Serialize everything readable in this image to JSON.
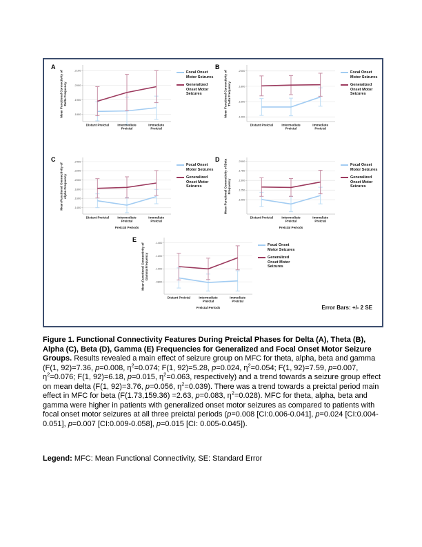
{
  "figure": {
    "note": "Error Bars: +/- 2 SE",
    "border_color": "#3d4e6e"
  },
  "chart_data": [
    {
      "panel": "A",
      "type": "line",
      "ylabel": "Mean Functional Connectivity of Delta Frequency",
      "ylabel_lines": [
        "Mean Functional Connectivity of",
        "Delta Frequency"
      ],
      "x_categories": [
        [
          "Distant Preictal"
        ],
        [
          "Intermediate",
          "Preictal"
        ],
        [
          "Immediate",
          "Preictal"
        ]
      ],
      "x_title": null,
      "y_ticks": [
        {
          "label": ".2100",
          "value": 0.21
        },
        {
          "label": ".2000",
          "value": 0.2
        },
        {
          "label": ".1900",
          "value": 0.19
        },
        {
          "label": ".1800",
          "value": 0.18
        }
      ],
      "y_range": [
        0.175,
        0.213
      ],
      "grid": true,
      "legend_position": "right",
      "series": [
        {
          "name": "Focal Onset Motor Seizures",
          "color": "#a2ccf2",
          "error_color": "#bcdcf5",
          "values": [
            0.182,
            0.1823,
            0.1845
          ],
          "errors": [
            0.0065,
            0.0095,
            0.008
          ]
        },
        {
          "name": "Generalized Onset Motor Seizures",
          "color": "#9c3a5e",
          "error_color": "#c78fa5",
          "values": [
            0.189,
            0.195,
            0.199
          ],
          "errors": [
            0.01,
            0.0125,
            0.011
          ]
        }
      ]
    },
    {
      "panel": "B",
      "type": "line",
      "ylabel": "Mean Functional Connectivity of Theta Frequency",
      "ylabel_lines": [
        "Mean Functional Connectivity of",
        "Theta Frequency"
      ],
      "x_categories": [
        [
          "Distant Preictal"
        ],
        [
          "Intermediate",
          "Preictal"
        ],
        [
          "Immediate",
          "Preictal"
        ]
      ],
      "x_title": null,
      "y_ticks": [
        {
          "label": ".2000",
          "value": 0.2
        },
        {
          "label": ".1800",
          "value": 0.18
        },
        {
          "label": ".1600",
          "value": 0.16
        },
        {
          "label": ".1400",
          "value": 0.14
        }
      ],
      "y_range": [
        0.134,
        0.206
      ],
      "grid": true,
      "legend_position": "right",
      "series": [
        {
          "name": "Focal Onset Motor Seizures",
          "color": "#a2ccf2",
          "error_color": "#bcdcf5",
          "values": [
            0.153,
            0.153,
            0.166
          ],
          "errors": [
            0.011,
            0.0115,
            0.012
          ]
        },
        {
          "name": "Generalized Onset Motor Seizures",
          "color": "#9c3a5e",
          "error_color": "#c78fa5",
          "values": [
            0.1805,
            0.1815,
            0.182
          ],
          "errors": [
            0.013,
            0.0125,
            0.015
          ]
        }
      ]
    },
    {
      "panel": "C",
      "type": "line",
      "ylabel": "Mean Functional Connectivity of Alpha Frequency",
      "ylabel_lines": [
        "Mean Functional Connectivity of",
        "Alpha Frequency"
      ],
      "x_categories": [
        [
          "Distant Preictal"
        ],
        [
          "Intermediate",
          "Preictal"
        ],
        [
          "Immediate",
          "Preictal"
        ]
      ],
      "x_title": "Preictal Periods",
      "y_ticks": [
        {
          "label": ".2400",
          "value": 0.24
        },
        {
          "label": ".2200",
          "value": 0.22
        },
        {
          "label": ".2000",
          "value": 0.2
        },
        {
          "label": ".1800",
          "value": 0.18
        },
        {
          "label": ".1600",
          "value": 0.16
        },
        {
          "label": ".1400",
          "value": 0.14
        }
      ],
      "y_range": [
        0.126,
        0.246
      ],
      "grid": true,
      "legend_position": "right",
      "series": [
        {
          "name": "Focal Onset Motor Seizures",
          "color": "#a2ccf2",
          "error_color": "#bcdcf5",
          "values": [
            0.155,
            0.1455,
            0.164
          ],
          "errors": [
            0.015,
            0.0165,
            0.0155
          ]
        },
        {
          "name": "Generalized Onset Motor Seizures",
          "color": "#9c3a5e",
          "error_color": "#c78fa5",
          "values": [
            0.182,
            0.184,
            0.1935
          ],
          "errors": [
            0.021,
            0.023,
            0.027
          ]
        }
      ]
    },
    {
      "panel": "D",
      "type": "line",
      "ylabel": "Mean Functional Connectivity of Beta Frequency",
      "ylabel_lines": [
        "Mean Functional Connectivity of Beta",
        "Frequency"
      ],
      "x_categories": [
        [
          "Distant Preictal"
        ],
        [
          "Intermediate",
          "Preictal"
        ],
        [
          "Immediate",
          "Preictal"
        ]
      ],
      "x_title": "Preictal Periods",
      "y_ticks": [
        {
          "label": ".2000",
          "value": 0.2
        },
        {
          "label": ".1750",
          "value": 0.175
        },
        {
          "label": ".1500",
          "value": 0.15
        },
        {
          "label": ".1250",
          "value": 0.125
        },
        {
          "label": ".1000",
          "value": 0.1
        }
      ],
      "y_range": [
        0.063,
        0.206
      ],
      "grid": true,
      "legend_position": "right",
      "series": [
        {
          "name": "Focal Onset Motor Seizures",
          "color": "#a2ccf2",
          "error_color": "#bcdcf5",
          "values": [
            0.101,
            0.089,
            0.111
          ],
          "errors": [
            0.0185,
            0.02,
            0.0215
          ]
        },
        {
          "name": "Generalized Onset Motor Seizures",
          "color": "#9c3a5e",
          "error_color": "#c78fa5",
          "values": [
            0.133,
            0.132,
            0.146
          ],
          "errors": [
            0.024,
            0.023,
            0.0305
          ]
        }
      ]
    },
    {
      "panel": "E",
      "type": "line",
      "ylabel": "Mean Functional Connectivity of Gamma Frequency",
      "ylabel_lines": [
        "Mean Functional Connectivity of",
        "Gamma Frequency"
      ],
      "x_categories": [
        [
          "Distant Preictal"
        ],
        [
          "Intermediate",
          "Preictal"
        ],
        [
          "Immediate",
          "Preictal"
        ]
      ],
      "x_title": "Preictal Periods",
      "y_ticks": [
        {
          "label": ".1400",
          "value": 0.14
        },
        {
          "label": ".1200",
          "value": 0.12
        },
        {
          "label": ".1000",
          "value": 0.1
        },
        {
          "label": ".0800",
          "value": 0.08
        }
      ],
      "y_range": [
        0.061,
        0.146
      ],
      "grid": true,
      "legend_position": "right",
      "series": [
        {
          "name": "Focal Onset Motor Seizures",
          "color": "#a2ccf2",
          "error_color": "#bcdcf5",
          "values": [
            0.086,
            0.079,
            0.0815
          ],
          "errors": [
            0.0155,
            0.013,
            0.0155
          ]
        },
        {
          "name": "Generalized Onset Motor Seizures",
          "color": "#9c3a5e",
          "error_color": "#c78fa5",
          "values": [
            0.1035,
            0.1,
            0.117
          ],
          "errors": [
            0.0205,
            0.0165,
            0.0185
          ]
        }
      ]
    }
  ],
  "caption": {
    "segments": [
      {
        "text": "Figure 1. Functional Connectivity Features During Preictal Phases for Delta (A), Theta (B), Alpha (C), Beta (D), Gamma (E) Frequencies for Generalized and Focal Onset Motor Seizure Groups.",
        "bold": true
      },
      {
        "text": " Results revealed a main effect of seizure group on MFC for theta, alpha, beta and gamma (F(1, 92)=7.36, "
      },
      {
        "text": "p",
        "italic": true
      },
      {
        "text": "=0.008, η"
      },
      {
        "text": "2",
        "sup": true
      },
      {
        "text": "=0.074; F(1, 92)=5.28, "
      },
      {
        "text": "p",
        "italic": true
      },
      {
        "text": "=0.024, η"
      },
      {
        "text": "2",
        "sup": true
      },
      {
        "text": "=0.054; F(1, 92)=7.59, "
      },
      {
        "text": "p",
        "italic": true
      },
      {
        "text": "=0.007, η"
      },
      {
        "text": "2",
        "sup": true
      },
      {
        "text": "=0.076; F(1, 92)=6.18, "
      },
      {
        "text": "p",
        "italic": true
      },
      {
        "text": "=0.015, η"
      },
      {
        "text": "2",
        "sup": true
      },
      {
        "text": "=0.063, respectively) and a trend towards a seizure group effect on mean delta (F(1, 92)=3.76, "
      },
      {
        "text": "p",
        "italic": true
      },
      {
        "text": "=0.056, η"
      },
      {
        "text": "2",
        "sup": true
      },
      {
        "text": "=0.039). There was a trend towards a preictal period main effect in MFC for beta (F(1.73,159.36) =2.63, "
      },
      {
        "text": "p",
        "italic": true
      },
      {
        "text": "=0.083, η"
      },
      {
        "text": "2",
        "sup": true
      },
      {
        "text": "=0.028). MFC for theta, alpha, beta and gamma were higher in patients with generalized onset motor seizures as compared to patients with focal onset motor seizures at all three preictal periods ("
      },
      {
        "text": "p",
        "italic": true
      },
      {
        "text": "=0.008 [CI:0.006-0.041], "
      },
      {
        "text": "p",
        "italic": true
      },
      {
        "text": "=0.024 [CI:0.004-0.051], "
      },
      {
        "text": "p",
        "italic": true
      },
      {
        "text": "=0.007 [CI:0.009-0.058], "
      },
      {
        "text": "p",
        "italic": true
      },
      {
        "text": "=0.015 [CI: 0.005-0.045])."
      }
    ]
  },
  "legend_note": {
    "segments": [
      {
        "text": "Legend:",
        "bold": true
      },
      {
        "text": " MFC: Mean Functional Connectivity, SE: Standard Error"
      }
    ]
  }
}
